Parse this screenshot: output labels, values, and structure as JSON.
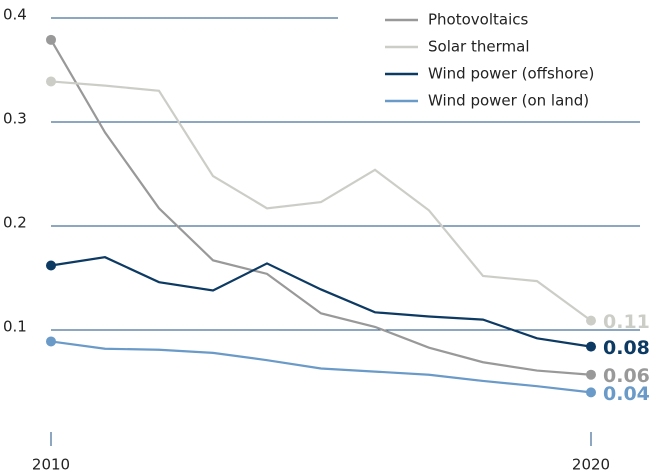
{
  "chart_data": {
    "type": "line",
    "x": [
      2010,
      2011,
      2012,
      2013,
      2014,
      2015,
      2016,
      2017,
      2018,
      2019,
      2020
    ],
    "xlim": [
      2010,
      2020
    ],
    "xticks": [
      2010,
      2020
    ],
    "ylim": [
      0,
      0.4
    ],
    "yticks": [
      0.1,
      0.2,
      0.3,
      0.4
    ],
    "grid": true,
    "legend": "top-right",
    "series": [
      {
        "name": "Photovoltaics",
        "color": "#999999",
        "values": [
          0.379,
          0.29,
          0.217,
          0.167,
          0.154,
          0.116,
          0.103,
          0.083,
          0.069,
          0.061,
          0.057
        ],
        "value_labels": [
          null,
          null,
          null,
          null,
          null,
          null,
          null,
          null,
          null,
          null,
          "0.06"
        ]
      },
      {
        "name": "Solar thermal",
        "color": "#cdcdc8",
        "values": [
          0.339,
          0.335,
          0.33,
          0.248,
          0.217,
          0.223,
          0.254,
          0.215,
          0.152,
          0.147,
          0.109
        ],
        "value_labels": [
          null,
          null,
          null,
          null,
          null,
          null,
          null,
          null,
          null,
          null,
          "0.11"
        ]
      },
      {
        "name": "Wind power (offshore)",
        "color": "#0d3a63",
        "values": [
          0.162,
          0.17,
          0.146,
          0.138,
          0.164,
          0.139,
          0.117,
          0.113,
          0.11,
          0.092,
          0.084
        ],
        "value_labels": [
          null,
          null,
          null,
          null,
          null,
          null,
          null,
          null,
          null,
          null,
          "0.08"
        ]
      },
      {
        "name": "Wind power (on land)",
        "color": "#6a9ac8",
        "values": [
          0.089,
          0.082,
          0.081,
          0.078,
          0.071,
          0.063,
          0.06,
          0.057,
          0.051,
          0.046,
          0.04
        ],
        "value_labels": [
          null,
          null,
          null,
          null,
          null,
          null,
          null,
          null,
          null,
          null,
          "0.04"
        ]
      }
    ]
  }
}
